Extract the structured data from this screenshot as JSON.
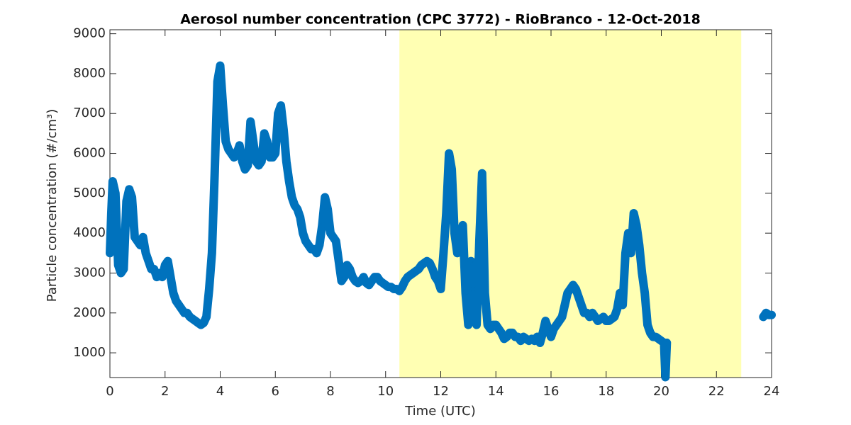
{
  "chart_data": {
    "type": "scatter",
    "title": "Aerosol number concentration (CPC 3772) - RioBranco - 12-Oct-2018",
    "x_label": "Time (UTC)",
    "y_label": "Particle concentration (#/cm³)",
    "color": "#0072bd",
    "highlight_x": [
      10.5,
      22.9
    ],
    "highlight_color": "#ffffb3",
    "xlim": [
      0,
      24
    ],
    "xticks": [
      0,
      2,
      4,
      6,
      8,
      10,
      12,
      14,
      16,
      18,
      20,
      22,
      24
    ],
    "ylim": [
      380,
      9100
    ],
    "yticks": [
      1000,
      2000,
      3000,
      4000,
      5000,
      6000,
      7000,
      8000,
      9000
    ],
    "x": [
      0.0,
      0.05,
      0.1,
      0.2,
      0.3,
      0.4,
      0.5,
      0.6,
      0.7,
      0.8,
      0.9,
      1.0,
      1.1,
      1.2,
      1.3,
      1.4,
      1.5,
      1.6,
      1.7,
      1.8,
      1.9,
      2.0,
      2.1,
      2.2,
      2.3,
      2.4,
      2.5,
      2.6,
      2.7,
      2.8,
      2.9,
      3.0,
      3.1,
      3.2,
      3.3,
      3.4,
      3.5,
      3.6,
      3.7,
      3.8,
      3.9,
      4.0,
      4.1,
      4.2,
      4.3,
      4.4,
      4.5,
      4.6,
      4.7,
      4.8,
      4.9,
      5.0,
      5.1,
      5.2,
      5.3,
      5.4,
      5.5,
      5.6,
      5.7,
      5.8,
      5.9,
      6.0,
      6.1,
      6.2,
      6.3,
      6.4,
      6.5,
      6.6,
      6.7,
      6.8,
      6.9,
      7.0,
      7.1,
      7.2,
      7.3,
      7.4,
      7.5,
      7.6,
      7.7,
      7.8,
      7.9,
      8.0,
      8.1,
      8.2,
      8.3,
      8.4,
      8.5,
      8.6,
      8.7,
      8.8,
      8.9,
      9.0,
      9.1,
      9.2,
      9.3,
      9.4,
      9.5,
      9.6,
      9.7,
      9.8,
      9.9,
      10.0,
      10.1,
      10.2,
      10.3,
      10.4,
      10.5,
      10.6,
      10.7,
      10.8,
      10.9,
      11.0,
      11.1,
      11.2,
      11.3,
      11.4,
      11.5,
      11.6,
      11.7,
      11.8,
      11.9,
      12.0,
      12.1,
      12.2,
      12.3,
      12.4,
      12.5,
      12.6,
      12.7,
      12.8,
      12.9,
      13.0,
      13.1,
      13.2,
      13.3,
      13.4,
      13.5,
      13.6,
      13.7,
      13.8,
      13.9,
      14.0,
      14.1,
      14.2,
      14.3,
      14.4,
      14.5,
      14.6,
      14.7,
      14.8,
      14.9,
      15.0,
      15.1,
      15.2,
      15.3,
      15.4,
      15.5,
      15.6,
      15.7,
      15.8,
      15.9,
      16.0,
      16.1,
      16.2,
      16.3,
      16.4,
      16.5,
      16.6,
      16.7,
      16.8,
      16.9,
      17.0,
      17.1,
      17.2,
      17.3,
      17.4,
      17.5,
      17.6,
      17.7,
      17.8,
      17.9,
      18.0,
      18.1,
      18.2,
      18.3,
      18.4,
      18.5,
      18.6,
      18.7,
      18.8,
      18.9,
      19.0,
      19.1,
      19.2,
      19.3,
      19.4,
      19.5,
      19.6,
      19.7,
      19.8,
      19.9,
      20.0,
      20.1,
      20.15,
      20.2,
      22.0,
      23.7,
      23.8,
      23.9,
      24.0
    ],
    "values": [
      3500,
      4500,
      5300,
      5000,
      3200,
      3000,
      3100,
      4800,
      5100,
      4900,
      3900,
      3800,
      3700,
      3900,
      3500,
      3300,
      3100,
      3100,
      2900,
      3000,
      2900,
      3200,
      3300,
      2900,
      2500,
      2300,
      2200,
      2100,
      2000,
      2000,
      1900,
      1850,
      1800,
      1750,
      1700,
      1750,
      1900,
      2600,
      3500,
      5500,
      7800,
      8200,
      7200,
      6300,
      6100,
      6000,
      5900,
      6000,
      6200,
      5800,
      5600,
      5700,
      6800,
      6300,
      5800,
      5700,
      5800,
      6500,
      6300,
      5900,
      5900,
      6000,
      7000,
      7200,
      6600,
      5800,
      5300,
      4900,
      4700,
      4600,
      4400,
      4000,
      3800,
      3700,
      3600,
      3600,
      3500,
      3700,
      4200,
      4900,
      4600,
      4000,
      3900,
      3800,
      3300,
      2800,
      2900,
      3200,
      3100,
      2900,
      2800,
      2750,
      2800,
      2900,
      2750,
      2700,
      2800,
      2900,
      2900,
      2800,
      2750,
      2700,
      2650,
      2650,
      2600,
      2600,
      2550,
      2650,
      2800,
      2900,
      2950,
      3000,
      3050,
      3100,
      3200,
      3250,
      3300,
      3250,
      3100,
      2900,
      2800,
      2600,
      3500,
      4500,
      6000,
      5600,
      4000,
      3500,
      3800,
      4200,
      2500,
      1700,
      3300,
      2600,
      1700,
      3800,
      5500,
      2500,
      1700,
      1600,
      1700,
      1700,
      1600,
      1500,
      1350,
      1400,
      1500,
      1500,
      1400,
      1400,
      1300,
      1400,
      1350,
      1300,
      1350,
      1300,
      1400,
      1250,
      1500,
      1800,
      1600,
      1400,
      1600,
      1700,
      1800,
      1900,
      2200,
      2500,
      2600,
      2700,
      2600,
      2400,
      2200,
      2000,
      2000,
      1900,
      2000,
      1900,
      1800,
      1850,
      1900,
      1800,
      1800,
      1850,
      1900,
      2100,
      2500,
      2200,
      3500,
      4000,
      3500,
      4500,
      4200,
      3700,
      3000,
      2500,
      1700,
      1500,
      1400,
      1400,
      1350,
      1300,
      1250,
      390,
      1250,
      null,
      1900,
      2000,
      1950,
      1950
    ]
  }
}
